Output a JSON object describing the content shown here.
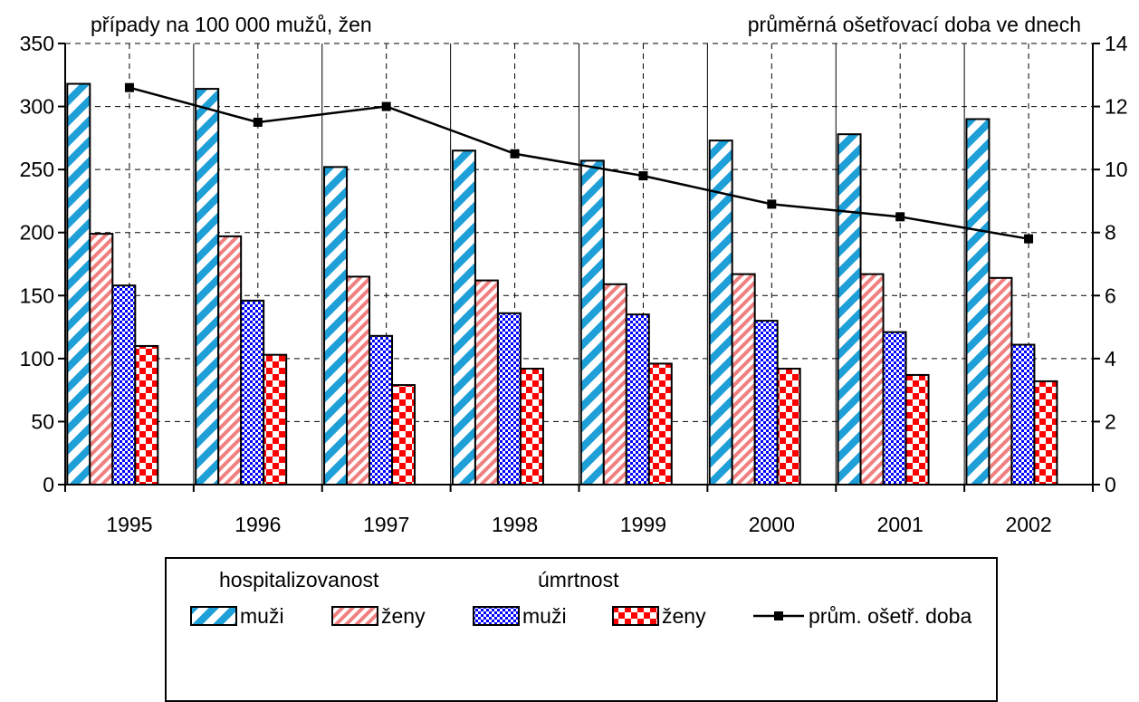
{
  "chart_data": {
    "type": "bar",
    "left_axis_title": "případy na 100 000 mužů, žen",
    "right_axis_title": "průměrná ošetřovací doba ve dnech",
    "categories": [
      "1995",
      "1996",
      "1997",
      "1998",
      "1999",
      "2000",
      "2001",
      "2002"
    ],
    "y_left": {
      "range": [
        0,
        350
      ],
      "ticks": [
        "0",
        "50",
        "100",
        "150",
        "200",
        "250",
        "300",
        "350"
      ]
    },
    "y_right": {
      "range": [
        0,
        14
      ],
      "ticks": [
        "0",
        "2",
        "4",
        "6",
        "8",
        "10",
        "12",
        "14"
      ]
    },
    "grid": "dashed",
    "series": [
      {
        "name": "muži",
        "group": "hospitalizovanost",
        "kind": "bar",
        "axis": "left",
        "pattern": "diagonal-blue",
        "color": "#1e9fd8",
        "values": [
          318,
          314,
          252,
          265,
          257,
          273,
          278,
          290
        ]
      },
      {
        "name": "ženy",
        "group": "hospitalizovanost",
        "kind": "bar",
        "axis": "left",
        "pattern": "diagonal-pink",
        "color": "#f08080",
        "values": [
          199,
          197,
          165,
          162,
          159,
          167,
          167,
          164
        ]
      },
      {
        "name": "muži",
        "group": "úmrtnost",
        "kind": "bar",
        "axis": "left",
        "pattern": "checker-blue",
        "color": "#0000ff",
        "values": [
          158,
          146,
          118,
          136,
          135,
          130,
          121,
          111
        ]
      },
      {
        "name": "ženy",
        "group": "úmrtnost",
        "kind": "bar",
        "axis": "left",
        "pattern": "checker-red",
        "color": "#ff0000",
        "values": [
          110,
          103,
          79,
          92,
          96,
          92,
          87,
          82
        ]
      },
      {
        "name": "prům. ošetř. doba",
        "kind": "line",
        "axis": "right",
        "color": "#000000",
        "marker": "square",
        "values": [
          12.6,
          11.5,
          12.0,
          10.5,
          9.8,
          8.9,
          8.5,
          7.8
        ]
      }
    ],
    "legend": {
      "position": "bottom",
      "groups": [
        "hospitalizovanost",
        "úmrtnost"
      ]
    }
  }
}
